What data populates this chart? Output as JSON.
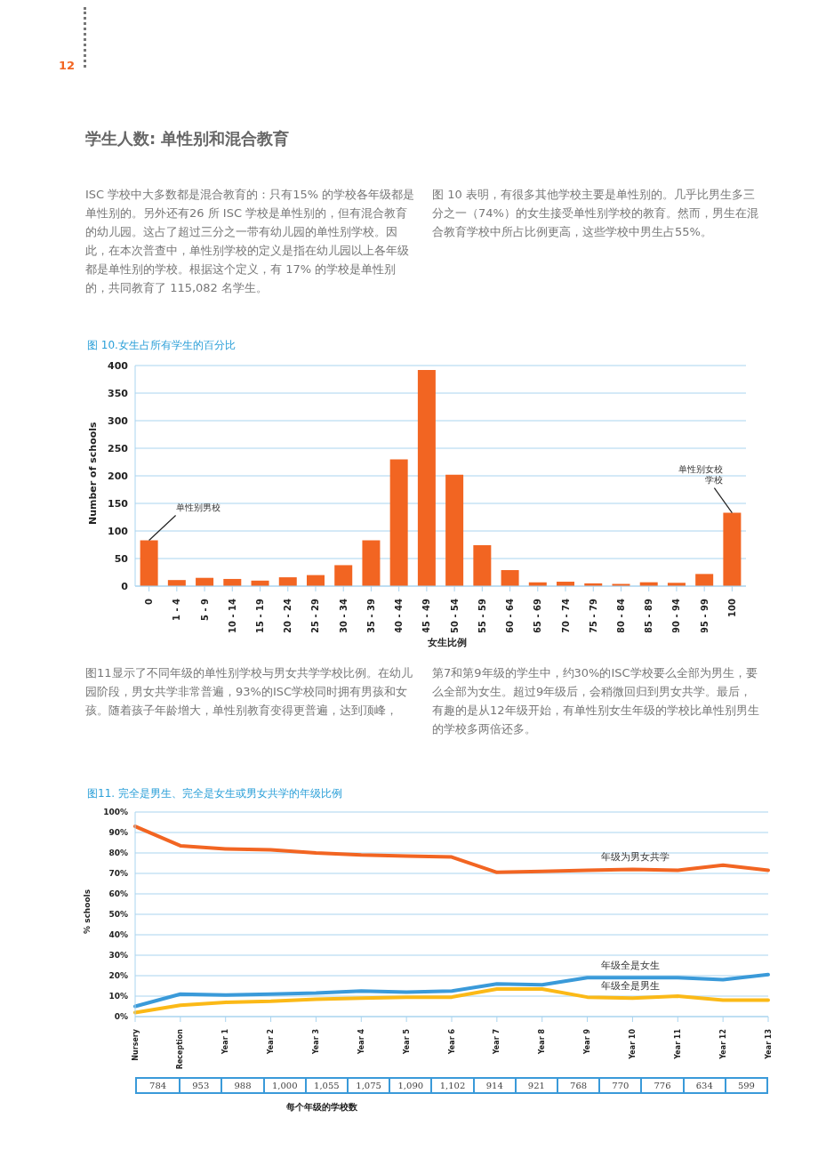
{
  "chart_data": [
    {
      "type": "bar",
      "title": "图 10.女生占所有学生的百分比",
      "xlabel": "女生比例",
      "ylabel": "Number of schools",
      "categories": [
        "0",
        "1 - 4",
        "5 - 9",
        "10 - 14",
        "15 - 19",
        "20 - 24",
        "25 - 29",
        "30 - 34",
        "35 - 39",
        "40 - 44",
        "45 - 49",
        "50 - 54",
        "55 - 59",
        "60 - 64",
        "65 - 69",
        "70 - 74",
        "75 - 79",
        "80 - 84",
        "85 - 89",
        "90 - 94",
        "95 - 99",
        "100"
      ],
      "values": [
        83,
        11,
        15,
        13,
        10,
        16,
        20,
        38,
        83,
        230,
        392,
        202,
        74,
        29,
        7,
        8,
        5,
        4,
        7,
        6,
        22,
        133
      ],
      "color": "#f26522",
      "ylim": [
        0,
        400
      ],
      "yticks": [
        0,
        50,
        100,
        150,
        200,
        250,
        300,
        350,
        400
      ],
      "grid": "y",
      "legend": false,
      "annotations": [
        "12",
        "学生人数: 单性别和混合教育",
        "ISC 学校中大多数都是混合教育的：只有15% 的学校各年级都是单性别的。另外还有26 所 ISC 学校是单性别的，但有混合教育的幼儿园。这占了超过三分之一带有幼儿园的单性别学校。因此，在本次普查中，单性别学校的定义是指在幼儿园以上各年级都是单性别的学校。根据这个定义，有 17% 的学校是单性别的，共同教育了 115,082 名学生。",
        "图 10 表明，有很多其他学校主要是单性别的。几乎比男生多三分之一（74%）的女生接受单性别学校的教育。然而，男生在混合教育学校中所占比例更高，这些学校中男生占55%。",
        {
          "text": "单性别男校",
          "x": "0",
          "y": 83
        },
        {
          "text": "单性别女校学校",
          "x": "100",
          "y": 133
        }
      ]
    },
    {
      "type": "line",
      "title": "图11. 完全是男生、完全是女生或男女共学的年级比例",
      "xlabel": "每个年级的学校数",
      "ylabel": "% schools",
      "categories": [
        "Nursery",
        "Reception",
        "Year 1",
        "Year 2",
        "Year 3",
        "Year 4",
        "Year 5",
        "Year 6",
        "Year 7",
        "Year 8",
        "Year 9",
        "Year 10",
        "Year 11",
        "Year 12",
        "Year 13"
      ],
      "series": [
        {
          "name": "年级为男女共学",
          "color": "#f26522",
          "values": [
            93,
            83.5,
            82,
            81.5,
            80,
            79,
            78.5,
            78,
            70.5,
            71,
            71.5,
            72,
            71.5,
            74,
            71.5
          ]
        },
        {
          "name": "年级全是女生",
          "color": "#3a9ad9",
          "values": [
            5,
            11,
            10.5,
            11,
            11.5,
            12.5,
            12,
            12.5,
            16,
            15.5,
            19,
            19,
            19,
            18,
            20.5
          ]
        },
        {
          "name": "年级全是男生",
          "color": "#fbb917",
          "values": [
            2,
            5.5,
            7,
            7.5,
            8.5,
            9,
            9.5,
            9.5,
            13.5,
            13.5,
            9.5,
            9,
            10,
            8,
            8
          ]
        }
      ],
      "ylim": [
        0,
        100
      ],
      "yticks": [
        {
          "value": 0,
          "label": "0%"
        },
        {
          "value": 10,
          "label": "10%"
        },
        {
          "value": 20,
          "label": "20%"
        },
        {
          "value": 30,
          "label": "30%"
        },
        {
          "value": 40,
          "label": "40%"
        },
        {
          "value": 50,
          "label": "50%"
        },
        {
          "value": 60,
          "label": "60%"
        },
        {
          "value": 70,
          "label": "70%"
        },
        {
          "value": 80,
          "label": "80%"
        },
        {
          "value": 90,
          "label": "90%"
        },
        {
          "value": 100,
          "label": "100%"
        }
      ],
      "grid": "y",
      "legend": false,
      "marker": "none",
      "line_style": "solid",
      "annotations": [
        "图11显示了不同年级的单性别学校与男女共学学校比例。在幼儿园阶段，男女共学非常普遍，93%的ISC学校同时拥有男孩和女孩。随着孩子年龄增大，单性别教育变得更普遍，达到顶峰，",
        "第7和第9年级的学生中，约30%的ISC学校要么全部为男生，要么全部为女生。超过9年级后，会稍微回归到男女共学。最后，有趣的是从12年级开始，有单性别女生年级的学校比单性别男生的学校多两倍还多。",
        "784",
        "953",
        "988",
        "1,000",
        "1,055",
        "1,075",
        "1,090",
        "1,102",
        "914",
        "921",
        "768",
        "770",
        "776",
        "634",
        "599"
      ]
    }
  ]
}
